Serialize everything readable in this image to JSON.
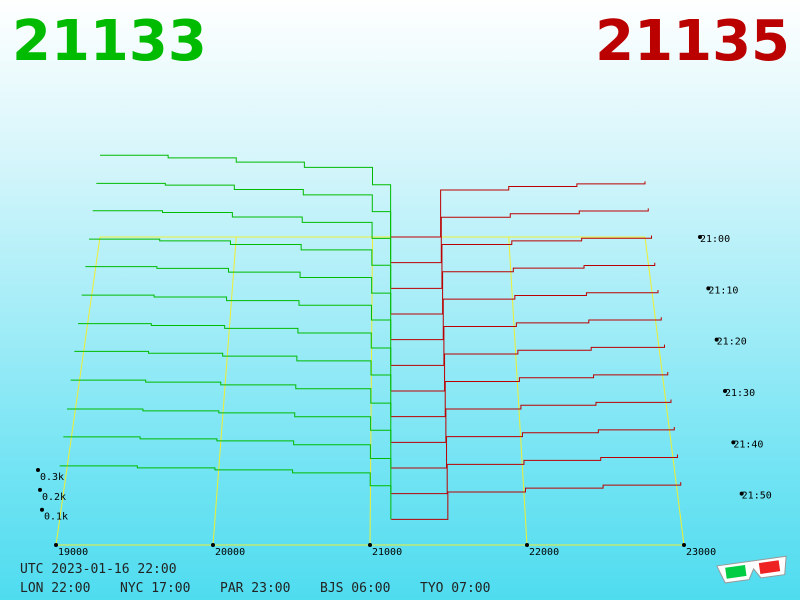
{
  "chart_data": {
    "type": "depth3d",
    "bid": 21133,
    "ask": 21135,
    "bid_color": "#00bb00",
    "ask_color": "#bb0000",
    "xlim": [
      19000,
      23000
    ],
    "xticks": [
      19000,
      20000,
      21000,
      22000,
      23000
    ],
    "ylim": [
      0,
      500
    ],
    "yticks": [
      {
        "value": 100,
        "label": "0.1k"
      },
      {
        "value": 200,
        "label": "0.2k"
      },
      {
        "value": 300,
        "label": "0.3k"
      }
    ],
    "zlim": [
      0,
      60
    ],
    "zticks": [
      {
        "value": 0,
        "label": "21:00"
      },
      {
        "value": 10,
        "label": "21:10"
      },
      {
        "value": 20,
        "label": "21:20"
      },
      {
        "value": 30,
        "label": "21:30"
      },
      {
        "value": 40,
        "label": "21:40"
      },
      {
        "value": 50,
        "label": "21:50"
      }
    ],
    "bid_prices": [
      19000,
      19500,
      20000,
      20500,
      21000,
      21133
    ],
    "ask_prices": [
      21135,
      21500,
      22000,
      22500,
      23000
    ],
    "snapshots": [
      {
        "t": 0,
        "bids": [
          470,
          455,
          430,
          400,
          300,
          0
        ],
        "asks": [
          0,
          270,
          290,
          305,
          320
        ]
      },
      {
        "t": 5,
        "bids": [
          450,
          440,
          415,
          385,
          290,
          0
        ],
        "asks": [
          0,
          258,
          278,
          293,
          308
        ]
      },
      {
        "t": 10,
        "bids": [
          435,
          425,
          400,
          370,
          280,
          0
        ],
        "asks": [
          0,
          246,
          266,
          281,
          296
        ]
      },
      {
        "t": 15,
        "bids": [
          415,
          405,
          385,
          355,
          270,
          0
        ],
        "asks": [
          0,
          234,
          254,
          269,
          284
        ]
      },
      {
        "t": 20,
        "bids": [
          400,
          390,
          370,
          340,
          255,
          0
        ],
        "asks": [
          0,
          222,
          242,
          257,
          272
        ]
      },
      {
        "t": 25,
        "bids": [
          380,
          370,
          350,
          325,
          245,
          0
        ],
        "asks": [
          0,
          210,
          230,
          245,
          260
        ]
      },
      {
        "t": 30,
        "bids": [
          360,
          350,
          335,
          310,
          230,
          0
        ],
        "asks": [
          0,
          198,
          218,
          233,
          248
        ]
      },
      {
        "t": 35,
        "bids": [
          345,
          335,
          320,
          295,
          220,
          0
        ],
        "asks": [
          0,
          186,
          206,
          221,
          236
        ]
      },
      {
        "t": 40,
        "bids": [
          325,
          315,
          300,
          280,
          205,
          0
        ],
        "asks": [
          0,
          174,
          194,
          209,
          224
        ]
      },
      {
        "t": 45,
        "bids": [
          305,
          295,
          285,
          265,
          195,
          0
        ],
        "asks": [
          0,
          162,
          182,
          197,
          212
        ]
      },
      {
        "t": 50,
        "bids": [
          290,
          280,
          270,
          250,
          180,
          0
        ],
        "asks": [
          0,
          150,
          170,
          185,
          200
        ]
      },
      {
        "t": 55,
        "bids": [
          270,
          260,
          250,
          235,
          170,
          0
        ],
        "asks": [
          0,
          138,
          158,
          173,
          188
        ]
      }
    ]
  },
  "footer": {
    "utc": "UTC 2023-01-16 22:00",
    "zones": [
      "LON 22:00",
      "NYC 17:00",
      "PAR 23:00",
      "BJS 06:00",
      "TYO 07:00"
    ]
  }
}
